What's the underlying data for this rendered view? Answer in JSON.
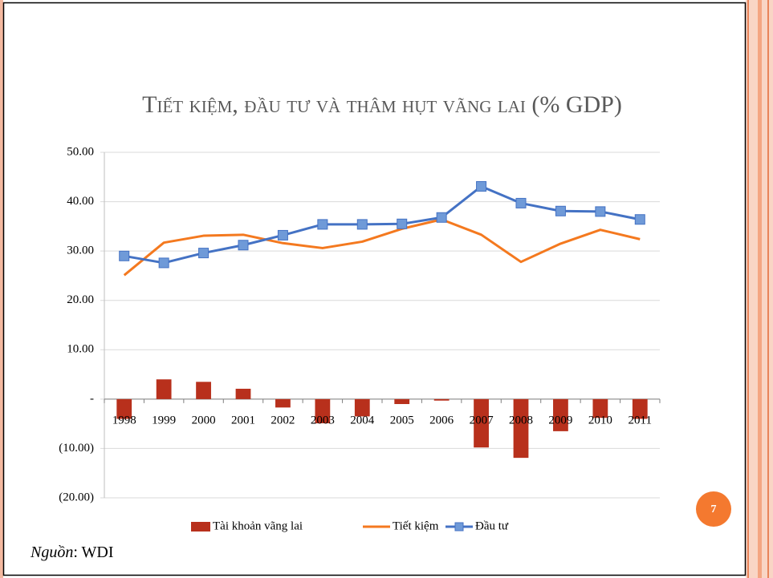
{
  "chart_data": {
    "type": "combo",
    "title": "Tiết kiệm, đầu tư và thâm hụt vãng lai (% GDP)",
    "categories": [
      "1998",
      "1999",
      "2000",
      "2001",
      "2002",
      "2003",
      "2004",
      "2005",
      "2006",
      "2007",
      "2008",
      "2009",
      "2010",
      "2011"
    ],
    "series": [
      {
        "name": "Tài khoản vãng lai",
        "type": "bar",
        "color": "#b8301c",
        "values": [
          -4.0,
          4.0,
          3.5,
          2.1,
          -1.7,
          -4.9,
          -3.5,
          -1.0,
          -0.3,
          -9.8,
          -11.9,
          -6.5,
          -3.8,
          -4.0
        ]
      },
      {
        "name": "Tiết kiệm",
        "type": "line",
        "color": "#f4791f",
        "values": [
          25.1,
          31.7,
          33.1,
          33.3,
          31.6,
          30.6,
          31.9,
          34.5,
          36.4,
          33.3,
          27.8,
          31.5,
          34.3,
          32.4
        ]
      },
      {
        "name": "Đầu tư",
        "type": "line",
        "color": "#4472c4",
        "marker": "square",
        "values": [
          29.0,
          27.6,
          29.6,
          31.2,
          33.2,
          35.4,
          35.4,
          35.5,
          36.8,
          43.1,
          39.7,
          38.1,
          38.0,
          36.4
        ]
      }
    ],
    "ylim": [
      -20,
      50
    ],
    "yticks": [
      {
        "value": -20,
        "label": "(20.00)"
      },
      {
        "value": -10,
        "label": "(10.00)"
      },
      {
        "value": 0,
        "label": "-"
      },
      {
        "value": 10,
        "label": "10.00"
      },
      {
        "value": 20,
        "label": "20.00"
      },
      {
        "value": 30,
        "label": "30.00"
      },
      {
        "value": 40,
        "label": "40.00"
      },
      {
        "value": 50,
        "label": "50.00"
      }
    ],
    "grid": true,
    "legend": "bottom"
  },
  "slide": {
    "number": 7,
    "source": [
      "Nguồn",
      ": WDI"
    ]
  }
}
